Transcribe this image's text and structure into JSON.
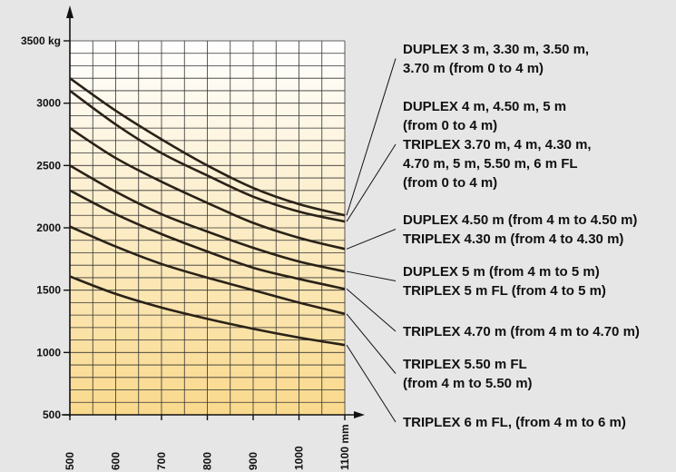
{
  "chart_data": {
    "type": "line",
    "x_axis": {
      "ticks": [
        "500",
        "600",
        "700",
        "800",
        "900",
        "1000",
        "1100 mm"
      ],
      "tick_values": [
        500,
        600,
        700,
        800,
        900,
        1000,
        1100
      ],
      "range": [
        500,
        1100
      ]
    },
    "y_axis": {
      "ticks": [
        "3500 kg",
        "3000",
        "2500",
        "2000",
        "1500",
        "1000",
        "500"
      ],
      "tick_values": [
        3500,
        3000,
        2500,
        2000,
        1500,
        1000,
        500
      ],
      "range": [
        500,
        3500
      ]
    },
    "grid": true,
    "background_gradient": [
      "#ffffff",
      "#f9d98c"
    ],
    "x": [
      500,
      600,
      700,
      800,
      900,
      1000,
      1100
    ],
    "series": [
      {
        "values": [
          3200,
          2940,
          2710,
          2500,
          2320,
          2190,
          2100
        ]
      },
      {
        "values": [
          3100,
          2830,
          2600,
          2420,
          2250,
          2130,
          2050
        ]
      },
      {
        "values": [
          2800,
          2560,
          2370,
          2200,
          2040,
          1920,
          1830
        ]
      },
      {
        "values": [
          2500,
          2290,
          2110,
          1970,
          1840,
          1730,
          1650
        ]
      },
      {
        "values": [
          2300,
          2110,
          1950,
          1810,
          1680,
          1590,
          1510
        ]
      },
      {
        "values": [
          2010,
          1850,
          1710,
          1600,
          1500,
          1400,
          1310
        ]
      },
      {
        "values": [
          1610,
          1470,
          1360,
          1270,
          1190,
          1120,
          1060
        ]
      }
    ],
    "legend": [
      {
        "lines": [
          "DUPLEX 3 m, 3.30 m, 3.50 m,",
          "3.70 m (from 0 to 4 m)"
        ],
        "series_index": 0
      },
      {
        "lines": [
          "DUPLEX 4 m, 4.50 m, 5 m",
          "(from 0 to 4 m)",
          "TRIPLEX 3.70 m, 4 m, 4.30 m,",
          "4.70 m, 5 m, 5.50 m, 6 m FL",
          "(from 0 to 4 m)"
        ],
        "series_index": 1
      },
      {
        "lines": [
          "DUPLEX 4.50 m (from 4 m to 4.50 m)",
          "TRIPLEX 4.30 m (from 4 to 4.30 m)"
        ],
        "series_index": 2
      },
      {
        "lines": [
          "DUPLEX 5 m (from 4 m to 5 m)",
          "TRIPLEX 5 m  FL (from 4 to 5 m)"
        ],
        "series_index": 3
      },
      {
        "lines": [
          "TRIPLEX 4.70 m (from 4 m to 4.70 m)"
        ],
        "series_index": 4
      },
      {
        "lines": [
          "TRIPLEX 5.50 m FL",
          "(from 4 m to 5.50 m)"
        ],
        "series_index": 5
      },
      {
        "lines": [
          "TRIPLEX 6 m FL, (from 4 m to 6 m)"
        ],
        "series_index": 6
      }
    ]
  }
}
